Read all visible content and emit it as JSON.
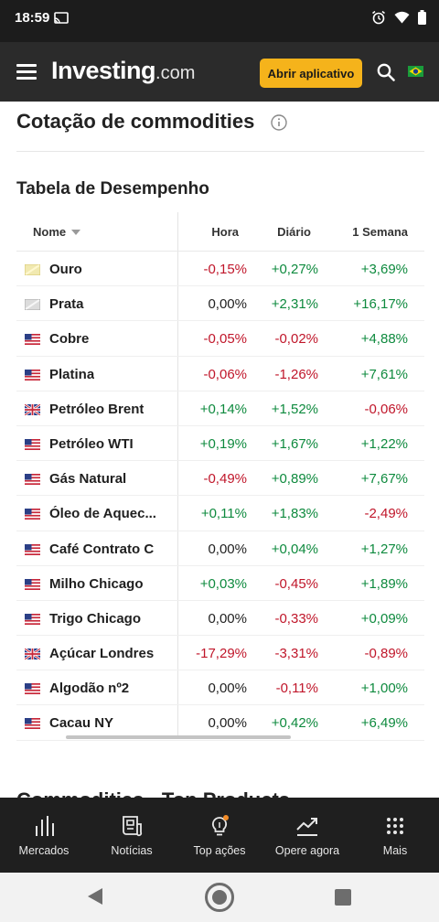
{
  "status": {
    "time": "18:59"
  },
  "header": {
    "logo_main": "Investing",
    "logo_suffix": ".com",
    "open_app_label": "Abrir aplicativo"
  },
  "page": {
    "title": "Cotação de commodities",
    "section_title": "Tabela de Desempenho",
    "next_section_title": "Commodities - Top Products"
  },
  "table": {
    "headers": {
      "name": "Nome",
      "hora": "Hora",
      "diario": "Diário",
      "semana": "1 Semana"
    },
    "rows": [
      {
        "flag": "gold-icon",
        "name": "Ouro",
        "hora": "-0,15%",
        "diario": "+0,27%",
        "semana": "+3,69%",
        "hora_s": "neg",
        "diario_s": "pos",
        "semana_s": "pos"
      },
      {
        "flag": "silver-icon",
        "name": "Prata",
        "hora": "0,00%",
        "diario": "+2,31%",
        "semana": "+16,17%",
        "hora_s": "neu",
        "diario_s": "pos",
        "semana_s": "pos"
      },
      {
        "flag": "us-flag-icon",
        "name": "Cobre",
        "hora": "-0,05%",
        "diario": "-0,02%",
        "semana": "+4,88%",
        "hora_s": "neg",
        "diario_s": "neg",
        "semana_s": "pos"
      },
      {
        "flag": "us-flag-icon",
        "name": "Platina",
        "hora": "-0,06%",
        "diario": "-1,26%",
        "semana": "+7,61%",
        "hora_s": "neg",
        "diario_s": "neg",
        "semana_s": "pos"
      },
      {
        "flag": "uk-flag-icon",
        "name": "Petróleo Brent",
        "hora": "+0,14%",
        "diario": "+1,52%",
        "semana": "-0,06%",
        "hora_s": "pos",
        "diario_s": "pos",
        "semana_s": "neg"
      },
      {
        "flag": "us-flag-icon",
        "name": "Petróleo WTI",
        "hora": "+0,19%",
        "diario": "+1,67%",
        "semana": "+1,22%",
        "hora_s": "pos",
        "diario_s": "pos",
        "semana_s": "pos"
      },
      {
        "flag": "us-flag-icon",
        "name": "Gás Natural",
        "hora": "-0,49%",
        "diario": "+0,89%",
        "semana": "+7,67%",
        "hora_s": "neg",
        "diario_s": "pos",
        "semana_s": "pos"
      },
      {
        "flag": "us-flag-icon",
        "name": "Óleo de Aquec...",
        "hora": "+0,11%",
        "diario": "+1,83%",
        "semana": "-2,49%",
        "hora_s": "pos",
        "diario_s": "pos",
        "semana_s": "neg"
      },
      {
        "flag": "us-flag-icon",
        "name": "Café Contrato C",
        "hora": "0,00%",
        "diario": "+0,04%",
        "semana": "+1,27%",
        "hora_s": "neu",
        "diario_s": "pos",
        "semana_s": "pos"
      },
      {
        "flag": "us-flag-icon",
        "name": "Milho Chicago",
        "hora": "+0,03%",
        "diario": "-0,45%",
        "semana": "+1,89%",
        "hora_s": "pos",
        "diario_s": "neg",
        "semana_s": "pos"
      },
      {
        "flag": "us-flag-icon",
        "name": "Trigo Chicago",
        "hora": "0,00%",
        "diario": "-0,33%",
        "semana": "+0,09%",
        "hora_s": "neu",
        "diario_s": "neg",
        "semana_s": "pos"
      },
      {
        "flag": "uk-flag-icon",
        "name": "Açúcar Londres",
        "hora": "-17,29%",
        "diario": "-3,31%",
        "semana": "-0,89%",
        "hora_s": "neg",
        "diario_s": "neg",
        "semana_s": "neg"
      },
      {
        "flag": "us-flag-icon",
        "name": "Algodão nº2",
        "hora": "0,00%",
        "diario": "-0,11%",
        "semana": "+1,00%",
        "hora_s": "neu",
        "diario_s": "neg",
        "semana_s": "pos"
      },
      {
        "flag": "us-flag-icon",
        "name": "Cacau NY",
        "hora": "0,00%",
        "diario": "+0,42%",
        "semana": "+6,49%",
        "hora_s": "neu",
        "diario_s": "pos",
        "semana_s": "pos"
      }
    ]
  },
  "bottom_nav": {
    "items": [
      {
        "label": "Mercados",
        "icon": "bar-chart-icon"
      },
      {
        "label": "Notícias",
        "icon": "news-icon"
      },
      {
        "label": "Top ações",
        "icon": "lightbulb-icon"
      },
      {
        "label": "Opere agora",
        "icon": "trend-up-icon"
      },
      {
        "label": "Mais",
        "icon": "grid-dots-icon"
      }
    ]
  },
  "colors": {
    "positive": "#0e8a3e",
    "negative": "#c0162a",
    "accent": "#f5b31b",
    "header_bg": "#2b2b2b"
  }
}
